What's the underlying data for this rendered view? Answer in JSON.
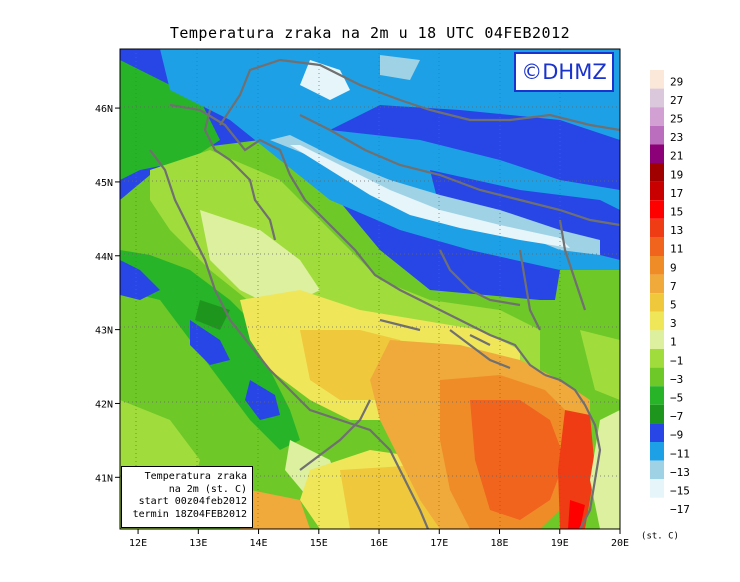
{
  "title": "Temperatura zraka na 2m u 18 UTC 04FEB2012",
  "logo": "©DHMZ",
  "info": {
    "line1": "Temperatura zraka",
    "line2": "na 2m (st. C)",
    "line3": "start 00z04feb2012",
    "line4": "termin 18Z04FEB2012"
  },
  "map": {
    "lon_ticks": [
      "12E",
      "13E",
      "14E",
      "15E",
      "16E",
      "17E",
      "18E",
      "19E",
      "20E"
    ],
    "lat_ticks": [
      "46N",
      "45N",
      "44N",
      "43N",
      "42N",
      "41N"
    ],
    "lon_range": [
      11.7,
      20.0
    ],
    "lat_range": [
      40.3,
      46.8
    ],
    "grid": "dotted"
  },
  "legend": {
    "unit": "(st. C)",
    "levels": [
      "29",
      "27",
      "25",
      "23",
      "21",
      "19",
      "17",
      "15",
      "13",
      "11",
      "9",
      "7",
      "5",
      "3",
      "1",
      "−1",
      "−3",
      "−5",
      "−7",
      "−9",
      "−11",
      "−13",
      "−15",
      "−17"
    ],
    "colors": [
      "#fbe8d8",
      "#dcc8dc",
      "#d2a0d2",
      "#bc6ebe",
      "#8c0078",
      "#a00000",
      "#c80000",
      "#ff0000",
      "#f03c14",
      "#f0641e",
      "#f08c28",
      "#f0aa3c",
      "#f0c83c",
      "#f0e65a",
      "#dcf0a0",
      "#a0dc3c",
      "#6ec828",
      "#28b428",
      "#1e961e",
      "#2846e6",
      "#1ea0e6",
      "#a0d2e6",
      "#e6f5fa",
      "#ffffff"
    ]
  }
}
